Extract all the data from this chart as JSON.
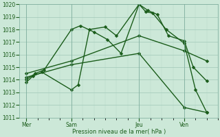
{
  "xlabel": "Pression niveau de la mer( hPa )",
  "ylim": [
    1011,
    1020
  ],
  "xlim": [
    -0.3,
    8.5
  ],
  "yticks": [
    1011,
    1012,
    1013,
    1014,
    1015,
    1016,
    1017,
    1018,
    1019,
    1020
  ],
  "xtick_labels": [
    "Mer",
    "Sam",
    "Jeu",
    "Ven"
  ],
  "xtick_positions": [
    0,
    2,
    5,
    7
  ],
  "bg_color": "#cce8d8",
  "line_color": "#1a5c1a",
  "lines": [
    {
      "x": [
        0,
        0.3,
        0.7,
        2.0,
        2.3,
        2.8,
        3.5,
        4.0,
        5.0,
        5.3,
        5.6,
        6.2,
        7.0,
        7.5,
        8.0
      ],
      "y": [
        1013.8,
        1014.3,
        1014.6,
        1013.2,
        1013.6,
        1018.0,
        1018.2,
        1017.5,
        1020.0,
        1019.4,
        1019.3,
        1018.0,
        1016.9,
        1013.2,
        1011.4
      ],
      "style": "-",
      "lw": 1.0,
      "ms": 2.5
    },
    {
      "x": [
        0,
        0.4,
        0.8,
        2.0,
        2.4,
        3.0,
        3.6,
        4.2,
        5.0,
        5.4,
        5.8,
        6.3,
        7.0,
        7.4,
        8.0
      ],
      "y": [
        1014.0,
        1014.5,
        1014.8,
        1018.0,
        1018.3,
        1017.8,
        1017.2,
        1016.1,
        1020.0,
        1019.5,
        1019.2,
        1017.5,
        1017.1,
        1015.0,
        1013.9
      ],
      "style": "-",
      "lw": 1.0,
      "ms": 2.5
    },
    {
      "x": [
        0,
        2.0,
        5.0,
        7.0,
        8.0
      ],
      "y": [
        1014.5,
        1015.5,
        1017.5,
        1016.3,
        1015.5
      ],
      "style": "-",
      "lw": 1.0,
      "ms": 2.5
    },
    {
      "x": [
        0,
        2.0,
        5.0,
        7.0,
        8.0
      ],
      "y": [
        1014.2,
        1015.2,
        1016.1,
        1011.8,
        1011.4
      ],
      "style": "-",
      "lw": 1.0,
      "ms": 2.5
    }
  ],
  "figsize": [
    3.2,
    2.0
  ],
  "dpi": 100
}
